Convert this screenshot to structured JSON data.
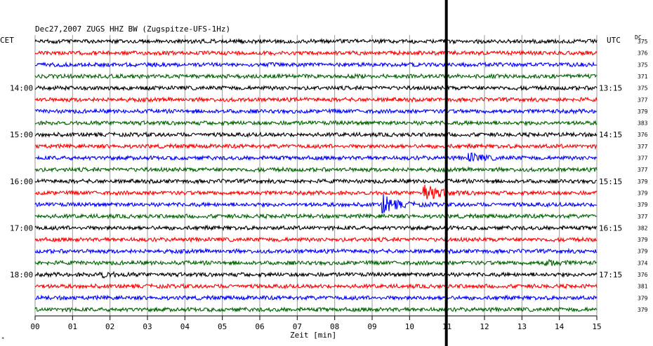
{
  "chart_data": {
    "type": "line",
    "title": "Dec27,2007   ZUGS HHZ BW (Zugspitze-UFS-1Hz)",
    "left_axis_label": "CET",
    "right_axis_label": "UTC",
    "dc_label": "DC",
    "xlabel": "Zeit [min]",
    "x_ticks": [
      "00",
      "01",
      "02",
      "03",
      "04",
      "05",
      "06",
      "07",
      "08",
      "09",
      "10",
      "11",
      "12",
      "13",
      "14",
      "15"
    ],
    "xlim": [
      0,
      15
    ],
    "trace_colors": [
      "#000000",
      "#ff0000",
      "#0000ff",
      "#006400"
    ],
    "cet_hour_labels": [
      {
        "row": 4,
        "label": "14:00"
      },
      {
        "row": 8,
        "label": "15:00"
      },
      {
        "row": 12,
        "label": "16:00"
      },
      {
        "row": 16,
        "label": "17:00"
      },
      {
        "row": 20,
        "label": "18:00"
      }
    ],
    "utc_hour_labels": [
      {
        "row": 4,
        "label": "13:15"
      },
      {
        "row": 8,
        "label": "14:15"
      },
      {
        "row": 12,
        "label": "15:15"
      },
      {
        "row": 16,
        "label": "16:15"
      },
      {
        "row": 20,
        "label": "17:15"
      }
    ],
    "dc_values": [
      375,
      376,
      375,
      371,
      375,
      377,
      379,
      383,
      376,
      377,
      377,
      377,
      379,
      379,
      379,
      377,
      382,
      379,
      379,
      374,
      376,
      381,
      379,
      379
    ],
    "events": [
      {
        "row": 14,
        "minute": 9.3,
        "amplitude": "large"
      },
      {
        "row": 13,
        "minute": 10.4,
        "amplitude": "large"
      },
      {
        "row": 10,
        "minute": 11.6,
        "amplitude": "medium"
      },
      {
        "row": 19,
        "minute": 13.6,
        "amplitude": "small"
      },
      {
        "row": 20,
        "minute": 1.7,
        "amplitude": "small"
      }
    ],
    "marker_minute": 11.0,
    "footer_mark": "*"
  }
}
